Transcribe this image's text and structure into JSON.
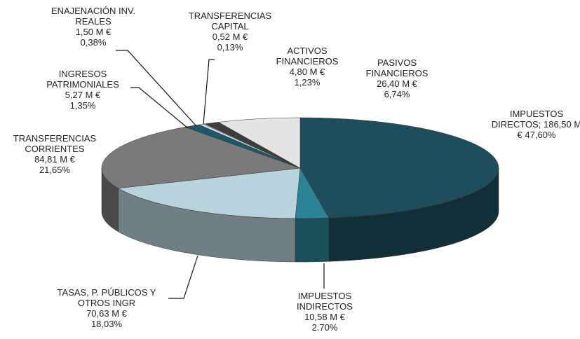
{
  "chart_data": {
    "type": "pie3d",
    "categories": [
      "IMPUESTOS DIRECTOS;",
      "IMPUESTOS INDIRECTOS",
      "TASAS, P. PÚBLICOS Y OTROS INGR",
      "TRANSFERENCIAS CORRIENTES",
      "INGRESOS PATRIMONIALES",
      "ENAJENACIÓN INV. REALES",
      "TRANSFERENCIAS CAPITAL",
      "ACTIVOS FINANCIEROS",
      "PASIVOS FINANCIEROS"
    ],
    "values": [
      47.6,
      2.7,
      18.03,
      21.65,
      1.35,
      0.38,
      0.13,
      1.23,
      6.74
    ],
    "value_labels": [
      "47,60%",
      "2.70%",
      "18,03%",
      "21,65%",
      "1,35%",
      "0,38%",
      "0,13%",
      "1,23%",
      "6,74%"
    ],
    "amounts": [
      186.5,
      10.58,
      70.63,
      84.81,
      5.27,
      1.5,
      0.52,
      4.8,
      26.4
    ],
    "amount_labels": [
      "186,50 M €",
      "10,58 M €",
      "70,63 M €",
      "84,81 M €",
      "5,27 M €",
      "1,50 M €",
      "0,52 M €",
      "4,80 M €",
      "26,40 M €"
    ],
    "colors": [
      "#1e4d5c",
      "#2b8494",
      "#b9d3dc",
      "#7a7a7a",
      "#1d5868",
      "#cde4ec",
      "#ffffff",
      "#3d3d3d",
      "#e4e4e4"
    ]
  }
}
